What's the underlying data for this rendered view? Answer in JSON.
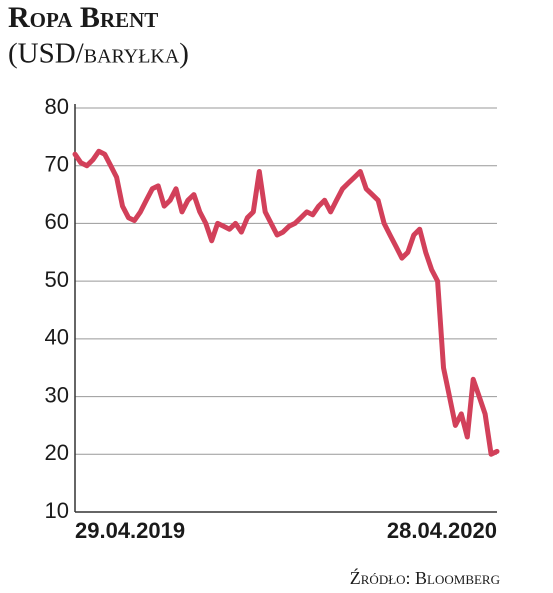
{
  "chart_data": {
    "type": "line",
    "title": "Ropa Brent",
    "subtitle": "(USD/baryłka)",
    "source": "Źródło: Bloomberg",
    "categories": [
      "29.04.2019",
      null,
      null,
      null,
      null,
      null,
      null,
      null,
      null,
      null,
      null,
      null,
      null,
      null,
      null,
      null,
      null,
      null,
      null,
      null,
      null,
      null,
      null,
      null,
      null,
      null,
      null,
      null,
      null,
      null,
      null,
      null,
      null,
      null,
      null,
      null,
      null,
      null,
      null,
      null,
      null,
      null,
      null,
      null,
      null,
      null,
      null,
      null,
      null,
      null,
      null,
      null,
      null,
      null,
      null,
      null,
      null,
      null,
      null,
      null,
      null,
      null,
      null,
      null,
      null,
      null,
      null,
      null,
      null,
      null,
      null,
      "28.04.2020"
    ],
    "series": [
      {
        "color": "#d2405a",
        "values": [
          72,
          70.5,
          70,
          71,
          72.5,
          72,
          70,
          68,
          63,
          61,
          60.5,
          62,
          64,
          66,
          66.5,
          63,
          64,
          66,
          62,
          64,
          65,
          62,
          60,
          57,
          60,
          59.5,
          59,
          60,
          58.5,
          61,
          62,
          69,
          62,
          60,
          58,
          58.5,
          59.5,
          60,
          61,
          62,
          61.5,
          63,
          64,
          62,
          64,
          66,
          67,
          68,
          69,
          66,
          65,
          64,
          60,
          58,
          56,
          54,
          55,
          58,
          59,
          55,
          52,
          50,
          35,
          30,
          25,
          27,
          23,
          33,
          30,
          27,
          20,
          20.5
        ]
      }
    ],
    "ylim": [
      10,
      80
    ],
    "yticks": [
      10,
      20,
      30,
      40,
      50,
      60,
      70,
      80
    ],
    "grid": true
  }
}
